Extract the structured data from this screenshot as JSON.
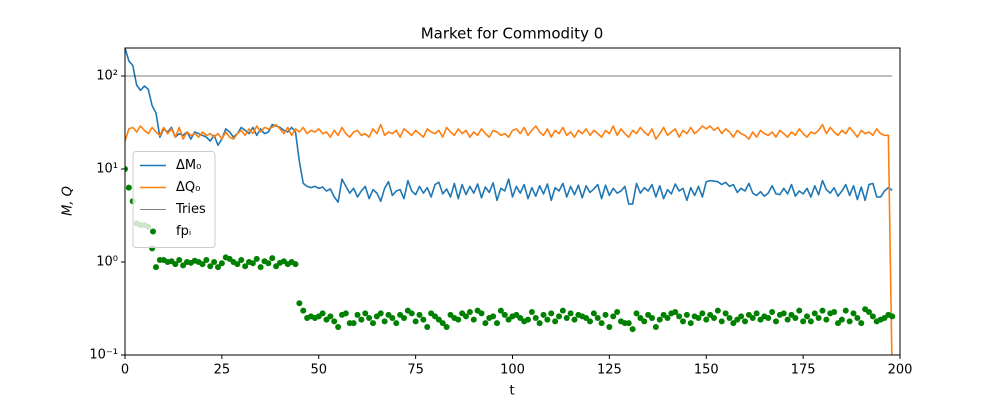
{
  "chart_data": {
    "type": "line",
    "title": "Market for Commodity 0",
    "xlabel": "t",
    "ylabel": "M, Q",
    "yscale": "log",
    "xlim": [
      0,
      200
    ],
    "ylim": [
      0.1,
      200
    ],
    "xticks": [
      0,
      25,
      50,
      75,
      100,
      125,
      150,
      175,
      200
    ],
    "yticks": [
      {
        "value": 0.1,
        "label": "10⁻¹"
      },
      {
        "value": 1,
        "label": "10⁰"
      },
      {
        "value": 10,
        "label": "10¹"
      },
      {
        "value": 100,
        "label": "10²"
      }
    ],
    "legend": "center left",
    "x": [
      0,
      1,
      2,
      3,
      4,
      5,
      6,
      7,
      8,
      9,
      10,
      11,
      12,
      13,
      14,
      15,
      16,
      17,
      18,
      19,
      20,
      21,
      22,
      23,
      24,
      25,
      26,
      27,
      28,
      29,
      30,
      31,
      32,
      33,
      34,
      35,
      36,
      37,
      38,
      39,
      40,
      41,
      42,
      43,
      44,
      45,
      46,
      47,
      48,
      49,
      50,
      51,
      52,
      53,
      54,
      55,
      56,
      57,
      58,
      59,
      60,
      61,
      62,
      63,
      64,
      65,
      66,
      67,
      68,
      69,
      70,
      71,
      72,
      73,
      74,
      75,
      76,
      77,
      78,
      79,
      80,
      81,
      82,
      83,
      84,
      85,
      86,
      87,
      88,
      89,
      90,
      91,
      92,
      93,
      94,
      95,
      96,
      97,
      98,
      99,
      100,
      101,
      102,
      103,
      104,
      105,
      106,
      107,
      108,
      109,
      110,
      111,
      112,
      113,
      114,
      115,
      116,
      117,
      118,
      119,
      120,
      121,
      122,
      123,
      124,
      125,
      126,
      127,
      128,
      129,
      130,
      131,
      132,
      133,
      134,
      135,
      136,
      137,
      138,
      139,
      140,
      141,
      142,
      143,
      144,
      145,
      146,
      147,
      148,
      149,
      150,
      151,
      152,
      153,
      154,
      155,
      156,
      157,
      158,
      159,
      160,
      161,
      162,
      163,
      164,
      165,
      166,
      167,
      168,
      169,
      170,
      171,
      172,
      173,
      174,
      175,
      176,
      177,
      178,
      179,
      180,
      181,
      182,
      183,
      184,
      185,
      186,
      187,
      188,
      189,
      190,
      191,
      192,
      193,
      194,
      195,
      196,
      197,
      198
    ],
    "series": [
      {
        "name": "ΔM₀",
        "type": "line",
        "color": "#1f77b4",
        "values": [
          200,
          145,
          130,
          80,
          70,
          78,
          72,
          48,
          40,
          22,
          27,
          25,
          28,
          22,
          24,
          23,
          25,
          21,
          25,
          24,
          23,
          22,
          20,
          23,
          18,
          21,
          27,
          25,
          22,
          24,
          28,
          26,
          24,
          28,
          23,
          27,
          24,
          25,
          30,
          29,
          28,
          26,
          25,
          28,
          25,
          12,
          7,
          6.5,
          6.3,
          6.5,
          6.2,
          6.4,
          5.8,
          6.1,
          5.0,
          4.4,
          7.8,
          6.5,
          5.5,
          6.2,
          5.0,
          5.8,
          6.5,
          4.8,
          6.0,
          5.5,
          4.5,
          6.2,
          7.3,
          5.2,
          5.8,
          6.0,
          4.8,
          7.5,
          5.8,
          5.3,
          6.5,
          5.5,
          6.3,
          5.0,
          6.8,
          7.2,
          5.4,
          6.1,
          5.0,
          7.0,
          4.8,
          6.8,
          5.3,
          6.5,
          5.5,
          6.9,
          4.9,
          6.4,
          5.6,
          7.1,
          4.6,
          6.2,
          5.8,
          7.8,
          5.0,
          6.5,
          5.5,
          6.8,
          4.8,
          6.3,
          5.1,
          6.6,
          5.4,
          6.9,
          4.6,
          6.3,
          5.8,
          7.0,
          5.0,
          6.5,
          5.3,
          6.7,
          4.9,
          6.6,
          5.6,
          6.1,
          6.8,
          4.8,
          6.7,
          5.2,
          6.2,
          5.5,
          5.8,
          6.5,
          4.2,
          4.2,
          7.0,
          5.5,
          6.3,
          5.8,
          6.8,
          5.0,
          6.6,
          4.8,
          6.0,
          5.4,
          6.9,
          5.8,
          6.2,
          4.6,
          6.3,
          5.2,
          6.5,
          5.0,
          7.3,
          7.5,
          7.4,
          7.3,
          6.8,
          7.2,
          6.5,
          6.8,
          5.6,
          6.2,
          5.8,
          7.0,
          5.5,
          5.2,
          5.7,
          5.1,
          5.5,
          6.6,
          5.4,
          5.3,
          6.2,
          5.4,
          6.8,
          5.1,
          5.8,
          5.4,
          6.2,
          5.0,
          6.6,
          5.3,
          7.5,
          6.0,
          5.5,
          6.3,
          5.1,
          5.8,
          6.8,
          5.2,
          6.6,
          4.7,
          6.4,
          4.6,
          6.8,
          7.0,
          5.0,
          5.0,
          5.8,
          6.3,
          5.9
        ]
      },
      {
        "name": "ΔQ₀",
        "type": "line",
        "color": "#ff7f0e",
        "values": [
          20,
          27,
          28,
          25,
          29,
          26,
          24,
          28,
          25,
          23,
          28,
          24,
          27,
          22,
          28,
          21,
          25,
          23,
          24,
          22,
          25,
          23,
          24,
          22,
          24,
          21,
          25,
          22,
          21,
          24,
          26,
          23,
          27,
          24,
          29,
          25,
          28,
          27,
          28,
          30,
          27,
          24,
          28,
          23,
          27,
          25,
          28,
          24,
          26,
          25,
          27,
          24,
          25,
          22,
          26,
          23,
          28,
          24,
          22,
          25,
          26,
          23,
          24,
          22,
          27,
          24,
          30,
          23,
          25,
          24,
          26,
          22,
          27,
          25,
          23,
          26,
          24,
          22,
          27,
          25,
          24,
          26,
          22,
          28,
          25,
          23,
          27,
          24,
          26,
          22,
          25,
          23,
          27,
          24,
          22,
          26,
          25,
          23,
          24,
          22,
          26,
          27,
          24,
          28,
          23,
          26,
          29,
          25,
          23,
          27,
          22,
          26,
          24,
          28,
          23,
          25,
          22,
          26,
          24,
          27,
          23,
          26,
          24,
          22,
          26,
          24,
          29,
          23,
          27,
          24,
          22,
          26,
          24,
          28,
          25,
          23,
          27,
          21,
          24,
          28,
          23,
          25,
          27,
          22,
          26,
          24,
          28,
          24,
          26,
          29,
          27,
          29,
          26,
          28,
          24,
          27,
          25,
          22,
          26,
          24,
          23,
          21,
          25,
          22,
          26,
          24,
          23,
          25,
          22,
          26,
          24,
          22,
          25,
          23,
          27,
          24,
          22,
          25,
          24,
          26,
          30,
          24,
          28,
          25,
          23,
          26,
          24,
          28,
          25,
          22,
          26,
          24,
          25,
          23,
          27,
          24,
          23,
          23,
          0.05
        ]
      },
      {
        "name": "Tries",
        "type": "line",
        "color": "#000000",
        "width": 0.6,
        "x": [
          0,
          198
        ],
        "values": [
          100,
          100
        ]
      },
      {
        "name": "fpᵢ",
        "type": "scatter",
        "color": "#008000",
        "values": [
          10,
          6.3,
          4.5,
          2.6,
          2.5,
          2.5,
          2.4,
          1.4,
          0.88,
          1.05,
          1.05,
          1.0,
          1.02,
          0.95,
          1.05,
          0.92,
          1.0,
          0.98,
          1.03,
          1.0,
          0.95,
          1.05,
          0.9,
          1.0,
          0.88,
          0.97,
          1.12,
          1.08,
          1.0,
          0.95,
          1.05,
          0.9,
          1.0,
          0.97,
          1.08,
          0.88,
          1.02,
          0.97,
          1.1,
          0.9,
          0.98,
          1.02,
          0.95,
          1.0,
          0.95,
          0.36,
          0.3,
          0.25,
          0.26,
          0.25,
          0.26,
          0.28,
          0.24,
          0.26,
          0.23,
          0.2,
          0.27,
          0.28,
          0.22,
          0.22,
          0.27,
          0.24,
          0.28,
          0.25,
          0.22,
          0.26,
          0.28,
          0.23,
          0.27,
          0.25,
          0.22,
          0.27,
          0.25,
          0.3,
          0.28,
          0.23,
          0.27,
          0.24,
          0.2,
          0.28,
          0.26,
          0.24,
          0.22,
          0.2,
          0.27,
          0.25,
          0.24,
          0.28,
          0.26,
          0.29,
          0.24,
          0.3,
          0.28,
          0.22,
          0.25,
          0.26,
          0.22,
          0.3,
          0.27,
          0.24,
          0.26,
          0.27,
          0.25,
          0.23,
          0.24,
          0.29,
          0.25,
          0.22,
          0.27,
          0.24,
          0.28,
          0.23,
          0.26,
          0.3,
          0.25,
          0.28,
          0.24,
          0.27,
          0.26,
          0.25,
          0.23,
          0.28,
          0.25,
          0.22,
          0.27,
          0.2,
          0.26,
          0.29,
          0.23,
          0.22,
          0.22,
          0.19,
          0.28,
          0.25,
          0.23,
          0.27,
          0.25,
          0.2,
          0.24,
          0.27,
          0.25,
          0.28,
          0.29,
          0.26,
          0.23,
          0.27,
          0.22,
          0.26,
          0.25,
          0.28,
          0.24,
          0.27,
          0.25,
          0.3,
          0.23,
          0.28,
          0.25,
          0.22,
          0.24,
          0.26,
          0.23,
          0.27,
          0.25,
          0.28,
          0.24,
          0.26,
          0.25,
          0.29,
          0.23,
          0.27,
          0.28,
          0.24,
          0.27,
          0.25,
          0.3,
          0.23,
          0.26,
          0.23,
          0.28,
          0.25,
          0.3,
          0.24,
          0.28,
          0.29,
          0.22,
          0.24,
          0.3,
          0.23,
          0.28,
          0.25,
          0.22,
          0.31,
          0.29,
          0.26,
          0.23,
          0.24,
          0.25,
          0.27,
          0.26
        ]
      }
    ]
  }
}
